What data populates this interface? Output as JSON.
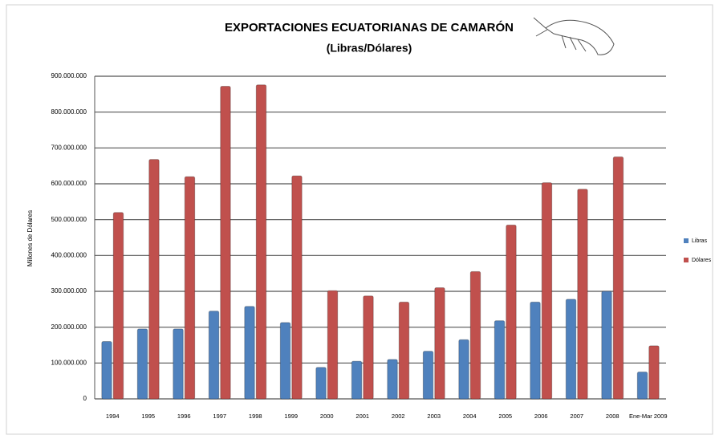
{
  "chart_data": {
    "type": "bar",
    "title": "EXPORTACIONES ECUATORIANAS DE CAMARÓN",
    "subtitle": "(Libras/Dólares)",
    "y_label": "Millones de Dólares",
    "categories": [
      "1994",
      "1995",
      "1996",
      "1997",
      "1998",
      "1999",
      "2000",
      "2001",
      "2002",
      "2003",
      "2004",
      "2005",
      "2006",
      "2007",
      "2008",
      "Ene-Mar 2009"
    ],
    "series": [
      {
        "name": "Libras",
        "color": "#4f81bd",
        "values": [
          160000000,
          195000000,
          195000000,
          245000000,
          258000000,
          213000000,
          88000000,
          105000000,
          110000000,
          133000000,
          165000000,
          218000000,
          270000000,
          278000000,
          300000000,
          75000000
        ]
      },
      {
        "name": "Dólares",
        "color": "#c0504d",
        "values": [
          520000000,
          668000000,
          620000000,
          872000000,
          876000000,
          622000000,
          302000000,
          287000000,
          270000000,
          310000000,
          355000000,
          485000000,
          603000000,
          585000000,
          675000000,
          148000000
        ]
      }
    ],
    "ylim": [
      0,
      900000000
    ],
    "yticks": [
      0,
      {
        "value": 100000000,
        "label": "100.000.000"
      },
      {
        "value": 200000000,
        "label": "200.000.000"
      },
      {
        "value": 300000000,
        "label": "300.000.000"
      },
      {
        "value": 400000000,
        "label": "400.000.000"
      },
      {
        "value": 500000000,
        "label": "500.000.000"
      },
      {
        "value": 600000000,
        "label": "600.000.000"
      },
      {
        "value": 700000000,
        "label": "700.000.000"
      },
      {
        "value": 800000000,
        "label": "800.000.000"
      },
      {
        "value": 900000000,
        "label": "900.000.000"
      }
    ],
    "grid": true,
    "legend": "right"
  }
}
